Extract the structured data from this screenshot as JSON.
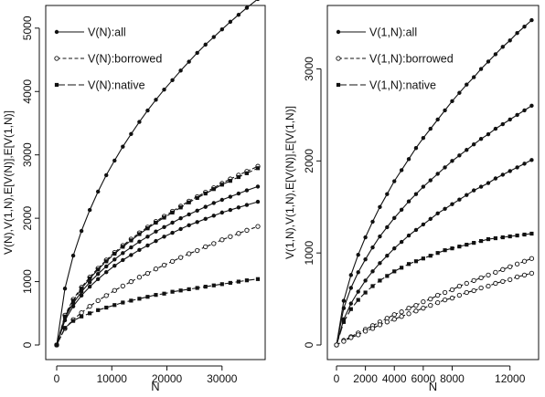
{
  "chart_data": [
    {
      "type": "line",
      "xlabel": "N",
      "ylabel": "V(N),V(1,N),E[V(N)],E[V(1,N)]",
      "xlim": [
        0,
        37000
      ],
      "ylim": [
        0,
        5300
      ],
      "xticks": [
        0,
        10000,
        20000,
        30000
      ],
      "xtick_labels": [
        "0",
        "10000",
        "20000",
        "30000"
      ],
      "yticks": [
        0,
        1000,
        2000,
        3000,
        4000,
        5000
      ],
      "ytick_labels": [
        "0",
        "1000",
        "2000",
        "3000",
        "4000",
        "5000"
      ],
      "grid": false,
      "legend_position": "top-left",
      "legend": [
        {
          "label": "V(N):all",
          "marker": "filled-circle",
          "dash": "solid"
        },
        {
          "label": "V(N):borrowed",
          "marker": "open-circle",
          "dash": "dashed"
        },
        {
          "label": "V(N):native",
          "marker": "filled-square",
          "dash": "longdash"
        }
      ],
      "x": [
        0,
        1500,
        3000,
        4500,
        6000,
        7500,
        9000,
        10500,
        12000,
        13500,
        15000,
        16500,
        18000,
        19500,
        21000,
        22500,
        24000,
        25500,
        27000,
        28500,
        30000,
        31500,
        33000,
        34500,
        36500
      ],
      "series": [
        {
          "name": "V(N):all",
          "marker": "filled-circle",
          "dash": "solid",
          "values": [
            0,
            890,
            1410,
            1800,
            2130,
            2420,
            2680,
            2910,
            3130,
            3330,
            3520,
            3700,
            3870,
            4030,
            4180,
            4330,
            4470,
            4610,
            4740,
            4860,
            4980,
            5100,
            5210,
            5320,
            5460
          ]
        },
        {
          "name": "",
          "marker": "open-circle",
          "dash": "dashed",
          "values": [
            0,
            470,
            720,
            910,
            1070,
            1210,
            1340,
            1460,
            1570,
            1670,
            1770,
            1860,
            1950,
            2030,
            2110,
            2190,
            2270,
            2340,
            2410,
            2480,
            2550,
            2620,
            2680,
            2740,
            2820
          ]
        },
        {
          "name": "",
          "marker": "filled-square",
          "dash": "longdash",
          "values": [
            0,
            450,
            700,
            890,
            1050,
            1190,
            1320,
            1440,
            1550,
            1650,
            1750,
            1840,
            1930,
            2010,
            2090,
            2170,
            2250,
            2320,
            2390,
            2460,
            2530,
            2590,
            2650,
            2710,
            2790
          ]
        },
        {
          "name": "",
          "marker": "filled-circle",
          "dash": "solid",
          "values": [
            0,
            430,
            660,
            840,
            990,
            1120,
            1240,
            1350,
            1450,
            1540,
            1630,
            1710,
            1790,
            1860,
            1930,
            2000,
            2060,
            2120,
            2180,
            2240,
            2290,
            2340,
            2390,
            2440,
            2500
          ]
        },
        {
          "name": "",
          "marker": "filled-circle",
          "dash": "solid",
          "values": [
            0,
            390,
            610,
            780,
            920,
            1040,
            1150,
            1250,
            1340,
            1420,
            1500,
            1570,
            1640,
            1710,
            1770,
            1830,
            1890,
            1940,
            1990,
            2040,
            2090,
            2130,
            2170,
            2210,
            2260
          ]
        },
        {
          "name": "V(N):borrowed",
          "marker": "open-circle",
          "dash": "dashed",
          "values": [
            0,
            260,
            400,
            510,
            610,
            700,
            780,
            860,
            930,
            1000,
            1070,
            1130,
            1200,
            1260,
            1320,
            1380,
            1440,
            1490,
            1550,
            1600,
            1660,
            1710,
            1760,
            1810,
            1870
          ]
        },
        {
          "name": "V(N):native",
          "marker": "filled-square",
          "dash": "longdash",
          "values": [
            0,
            270,
            380,
            450,
            500,
            550,
            590,
            630,
            670,
            700,
            730,
            760,
            790,
            810,
            840,
            860,
            880,
            900,
            920,
            940,
            960,
            980,
            1000,
            1020,
            1040
          ]
        }
      ]
    },
    {
      "type": "line",
      "xlabel": "N",
      "ylabel": "V(1,N),V(1,N),E[V(N)],E[V(1,N)]",
      "xlim": [
        0,
        13600
      ],
      "ylim": [
        0,
        3650
      ],
      "xticks": [
        0,
        2000,
        4000,
        6000,
        8000,
        12000
      ],
      "xtick_labels": [
        "0",
        "2000",
        "4000",
        "6000",
        "8000",
        "12000"
      ],
      "yticks": [
        0,
        1000,
        2000,
        3000
      ],
      "ytick_labels": [
        "0",
        "1000",
        "2000",
        "3000"
      ],
      "grid": false,
      "legend_position": "top-left",
      "legend": [
        {
          "label": "V(1,N):all",
          "marker": "filled-circle",
          "dash": "solid"
        },
        {
          "label": "V(1,N):borrowed",
          "marker": "open-circle",
          "dash": "dashed"
        },
        {
          "label": "V(1,N):native",
          "marker": "filled-square",
          "dash": "longdash"
        }
      ],
      "x": [
        0,
        500,
        1000,
        1500,
        2000,
        2500,
        3000,
        3500,
        4000,
        4500,
        5000,
        5500,
        6000,
        6500,
        7000,
        7500,
        8000,
        8500,
        9000,
        9500,
        10000,
        10500,
        11000,
        11500,
        12000,
        12500,
        13000,
        13500
      ],
      "series": [
        {
          "name": "V(1,N):all",
          "marker": "filled-circle",
          "dash": "solid",
          "values": [
            0,
            480,
            760,
            980,
            1170,
            1340,
            1500,
            1640,
            1780,
            1900,
            2020,
            2140,
            2250,
            2350,
            2450,
            2550,
            2650,
            2740,
            2830,
            2910,
            3000,
            3080,
            3160,
            3240,
            3310,
            3390,
            3460,
            3530
          ]
        },
        {
          "name": "",
          "marker": "filled-circle",
          "dash": "solid",
          "values": [
            0,
            400,
            620,
            790,
            930,
            1060,
            1180,
            1280,
            1380,
            1470,
            1560,
            1640,
            1720,
            1790,
            1860,
            1930,
            2000,
            2060,
            2120,
            2180,
            2240,
            2290,
            2350,
            2400,
            2450,
            2500,
            2550,
            2600
          ]
        },
        {
          "name": "",
          "marker": "filled-circle",
          "dash": "solid",
          "values": [
            0,
            280,
            450,
            580,
            700,
            800,
            890,
            970,
            1050,
            1120,
            1190,
            1250,
            1310,
            1370,
            1430,
            1480,
            1530,
            1580,
            1630,
            1680,
            1720,
            1760,
            1810,
            1850,
            1890,
            1930,
            1970,
            2010
          ]
        },
        {
          "name": "V(1,N):native",
          "marker": "filled-square",
          "dash": "longdash",
          "values": [
            0,
            250,
            390,
            490,
            570,
            640,
            700,
            750,
            800,
            840,
            880,
            910,
            940,
            970,
            1000,
            1030,
            1050,
            1070,
            1090,
            1110,
            1130,
            1150,
            1160,
            1170,
            1180,
            1190,
            1200,
            1210
          ]
        },
        {
          "name": "",
          "marker": "open-circle",
          "dash": "dashed",
          "values": [
            0,
            50,
            90,
            130,
            170,
            210,
            250,
            290,
            330,
            360,
            400,
            430,
            470,
            500,
            540,
            570,
            600,
            640,
            670,
            700,
            730,
            760,
            790,
            820,
            850,
            880,
            910,
            940
          ]
        },
        {
          "name": "V(1,N):borrowed",
          "marker": "open-circle",
          "dash": "dashed",
          "values": [
            0,
            40,
            80,
            110,
            150,
            180,
            220,
            250,
            280,
            310,
            340,
            370,
            400,
            430,
            460,
            490,
            510,
            540,
            570,
            590,
            620,
            640,
            670,
            690,
            710,
            740,
            760,
            780
          ]
        }
      ]
    }
  ]
}
